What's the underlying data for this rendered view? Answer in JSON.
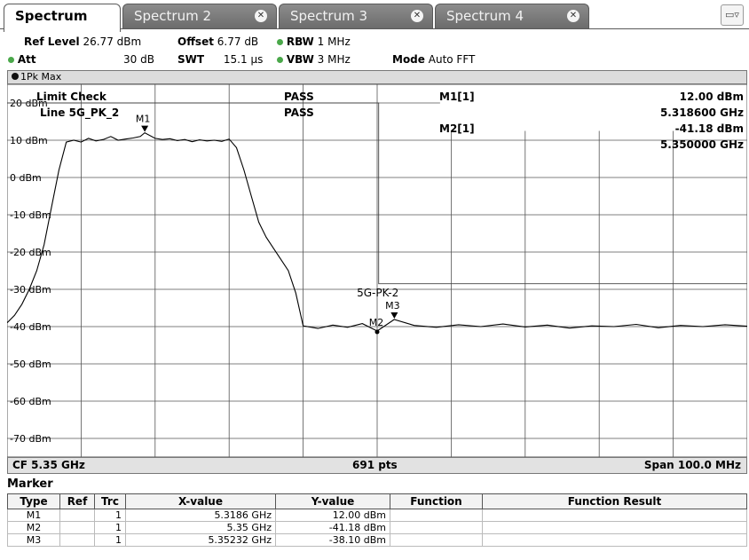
{
  "tabs": [
    {
      "label": "Spectrum",
      "active": true
    },
    {
      "label": "Spectrum 2",
      "active": false
    },
    {
      "label": "Spectrum 3",
      "active": false
    },
    {
      "label": "Spectrum 4",
      "active": false
    }
  ],
  "settings": {
    "ref_level_label": "Ref Level",
    "ref_level_value": "26.77 dBm",
    "offset_label": "Offset",
    "offset_value": "6.77 dB",
    "rbw_label": "RBW",
    "rbw_value": "1 MHz",
    "att_label": "Att",
    "att_value": "30 dB",
    "swt_label": "SWT",
    "swt_value": "15.1 µs",
    "vbw_label": "VBW",
    "vbw_value": "3 MHz",
    "mode_label": "Mode",
    "mode_value": "Auto FFT"
  },
  "trace_label": "1Pk Max",
  "limit": {
    "title": "Limit Check",
    "line_name": "Line 5G_PK_2",
    "status1": "PASS",
    "status2": "PASS",
    "plot_label": "5G-PK-2"
  },
  "marker_readout": {
    "m1_label": "M1[1]",
    "m1_level": "12.00 dBm",
    "m1_freq": "5.318600 GHz",
    "m2_label": "M2[1]",
    "m2_level": "-41.18 dBm",
    "m2_freq": "5.350000 GHz"
  },
  "chart_data": {
    "type": "line",
    "y_ticks": [
      "20 dBm",
      "10 dBm",
      "0 dBm",
      "-10 dBm",
      "-20 dBm",
      "-30 dBm",
      "-40 dBm",
      "-50 dBm",
      "-60 dBm",
      "-70 dBm"
    ],
    "ylim": [
      -75,
      25
    ],
    "xlim_ghz": [
      5.3,
      5.4
    ],
    "trace": {
      "x_ghz": [
        5.3,
        5.301,
        5.302,
        5.303,
        5.304,
        5.305,
        5.306,
        5.307,
        5.308,
        5.309,
        5.31,
        5.311,
        5.312,
        5.313,
        5.314,
        5.315,
        5.316,
        5.317,
        5.318,
        5.3186,
        5.32,
        5.321,
        5.322,
        5.323,
        5.324,
        5.325,
        5.326,
        5.327,
        5.328,
        5.329,
        5.33,
        5.331,
        5.332,
        5.333,
        5.334,
        5.335,
        5.336,
        5.337,
        5.338,
        5.339,
        5.34,
        5.342,
        5.344,
        5.346,
        5.348,
        5.35,
        5.3523,
        5.355,
        5.358,
        5.361,
        5.364,
        5.367,
        5.37,
        5.373,
        5.376,
        5.379,
        5.382,
        5.385,
        5.388,
        5.391,
        5.394,
        5.397,
        5.4
      ],
      "y_dbm": [
        -39,
        -37,
        -34,
        -30,
        -25,
        -18,
        -8,
        2,
        9.5,
        10,
        9.5,
        10.5,
        9.8,
        10.2,
        11,
        10,
        10.3,
        10.6,
        11,
        12,
        10.5,
        10.2,
        10.4,
        9.9,
        10.2,
        9.6,
        10.1,
        9.8,
        10,
        9.7,
        10.3,
        8,
        2,
        -5,
        -12,
        -16,
        -19,
        -22,
        -25,
        -31,
        -39.8,
        -40.5,
        -39.6,
        -40.2,
        -39.2,
        -41.18,
        -38.1,
        -39.7,
        -40.2,
        -39.5,
        -40,
        -39.3,
        -40.1,
        -39.6,
        -40.4,
        -39.8,
        -40,
        -39.4,
        -40.3,
        -39.7,
        -40,
        -39.5,
        -39.9
      ]
    },
    "limit_line": {
      "x_ghz": [
        5.3,
        5.3502,
        5.3502,
        5.4
      ],
      "y_dbm": [
        20,
        20,
        -28.5,
        -28.5
      ]
    },
    "markers": [
      {
        "name": "M1",
        "x_ghz": 5.3186,
        "y_dbm": 12.0
      },
      {
        "name": "M2",
        "x_ghz": 5.35,
        "y_dbm": -41.18
      },
      {
        "name": "M3",
        "x_ghz": 5.35232,
        "y_dbm": -38.1
      }
    ],
    "grid": true
  },
  "footer": {
    "cf": "CF 5.35 GHz",
    "pts": "691 pts",
    "span": "Span 100.0 MHz"
  },
  "marker_table": {
    "title": "Marker",
    "headers": [
      "Type",
      "Ref",
      "Trc",
      "X-value",
      "Y-value",
      "Function",
      "Function Result"
    ],
    "rows": [
      [
        "M1",
        "",
        "1",
        "5.3186 GHz",
        "12.00 dBm",
        "",
        ""
      ],
      [
        "M2",
        "",
        "1",
        "5.35 GHz",
        "-41.18 dBm",
        "",
        ""
      ],
      [
        "M3",
        "",
        "1",
        "5.35232 GHz",
        "-38.10 dBm",
        "",
        ""
      ]
    ]
  },
  "colors": {
    "inactive_tab": "#7c7c7c",
    "status_dot": "#4aa84a",
    "trace": "#000000",
    "grid": "#555555"
  }
}
